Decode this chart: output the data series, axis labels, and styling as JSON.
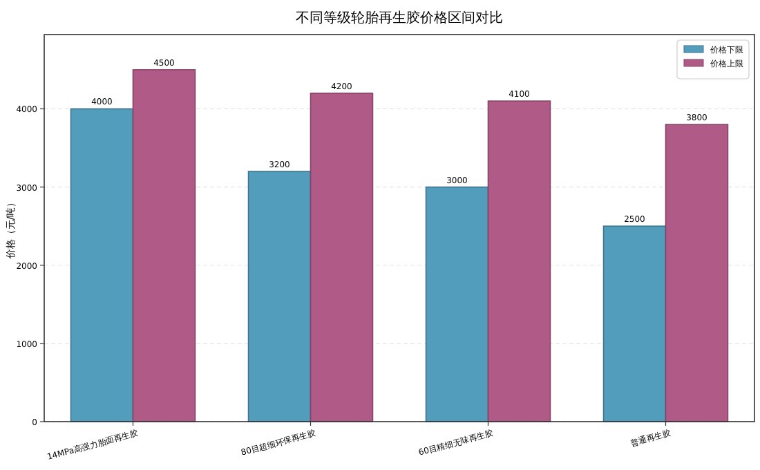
{
  "chart_data": {
    "type": "bar",
    "title": "不同等级轮胎再生胶价格区间对比",
    "ylabel": "价格（元/吨）",
    "categories": [
      "14MPa高强力胎面再生胶",
      "80目超细环保再生胶",
      "60目精细无味再生胶",
      "普通再生胶"
    ],
    "series": [
      {
        "name": "价格下限",
        "color": "#529cbc",
        "values": [
          4000,
          3200,
          3000,
          2500
        ]
      },
      {
        "name": "价格上限",
        "color": "#b05b87",
        "values": [
          4500,
          4200,
          4100,
          3800
        ]
      }
    ],
    "ylim": [
      0,
      4950
    ],
    "yticks": [
      0,
      1000,
      2000,
      3000,
      4000
    ],
    "grid": "y",
    "legend": "top right",
    "data_labels": true
  }
}
